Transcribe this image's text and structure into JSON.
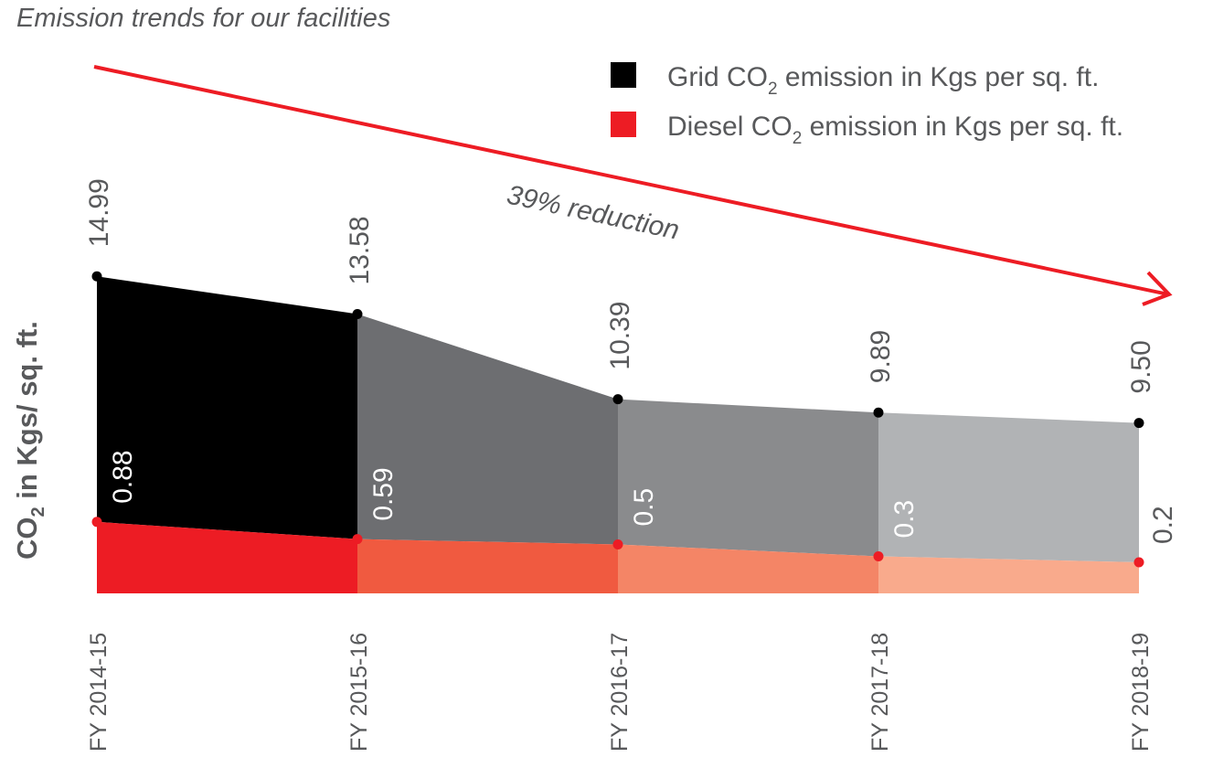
{
  "chart_data": {
    "type": "area",
    "title": "Emission trends for our facilities",
    "ylabel": "CO2 in Kgs/ sq. ft.",
    "ylabel_main": "CO",
    "ylabel_sub": "2",
    "ylabel_rest": " in Kgs/ sq. ft.",
    "categories": [
      "FY 2014-15",
      "FY 2015-16",
      "FY 2016-17",
      "FY 2017-18",
      "FY 2018-19"
    ],
    "series": [
      {
        "name": "Grid CO2 emission in Kgs per sq. ft.",
        "legend_pre": "Grid CO",
        "legend_post": "emission in Kgs per sq. ft.",
        "color": "#000000",
        "values": [
          14.99,
          13.58,
          10.39,
          9.89,
          9.5
        ],
        "labels": [
          "14.99",
          "13.58",
          "10.39",
          "9.89",
          "9.50"
        ],
        "segment_colors": [
          "#000000",
          "#6d6e71",
          "#8a8b8d",
          "#b1b3b5"
        ]
      },
      {
        "name": "Diesel CO2 emission in Kgs per sq. ft.",
        "legend_pre": "Diesel CO",
        "legend_post": "emission in Kgs per sq. ft.",
        "color": "#ed1c24",
        "values": [
          0.88,
          0.59,
          0.5,
          0.3,
          0.2
        ],
        "labels": [
          "0.88",
          "0.59",
          "0.5",
          "0.3",
          "0.2"
        ],
        "segment_colors": [
          "#ed1c24",
          "#f05a40",
          "#f48566",
          "#f9aa8c"
        ]
      }
    ],
    "annotation": "39% reduction",
    "annotation_color": "#ed1c24",
    "legend_position": "top-right",
    "grid": false
  }
}
